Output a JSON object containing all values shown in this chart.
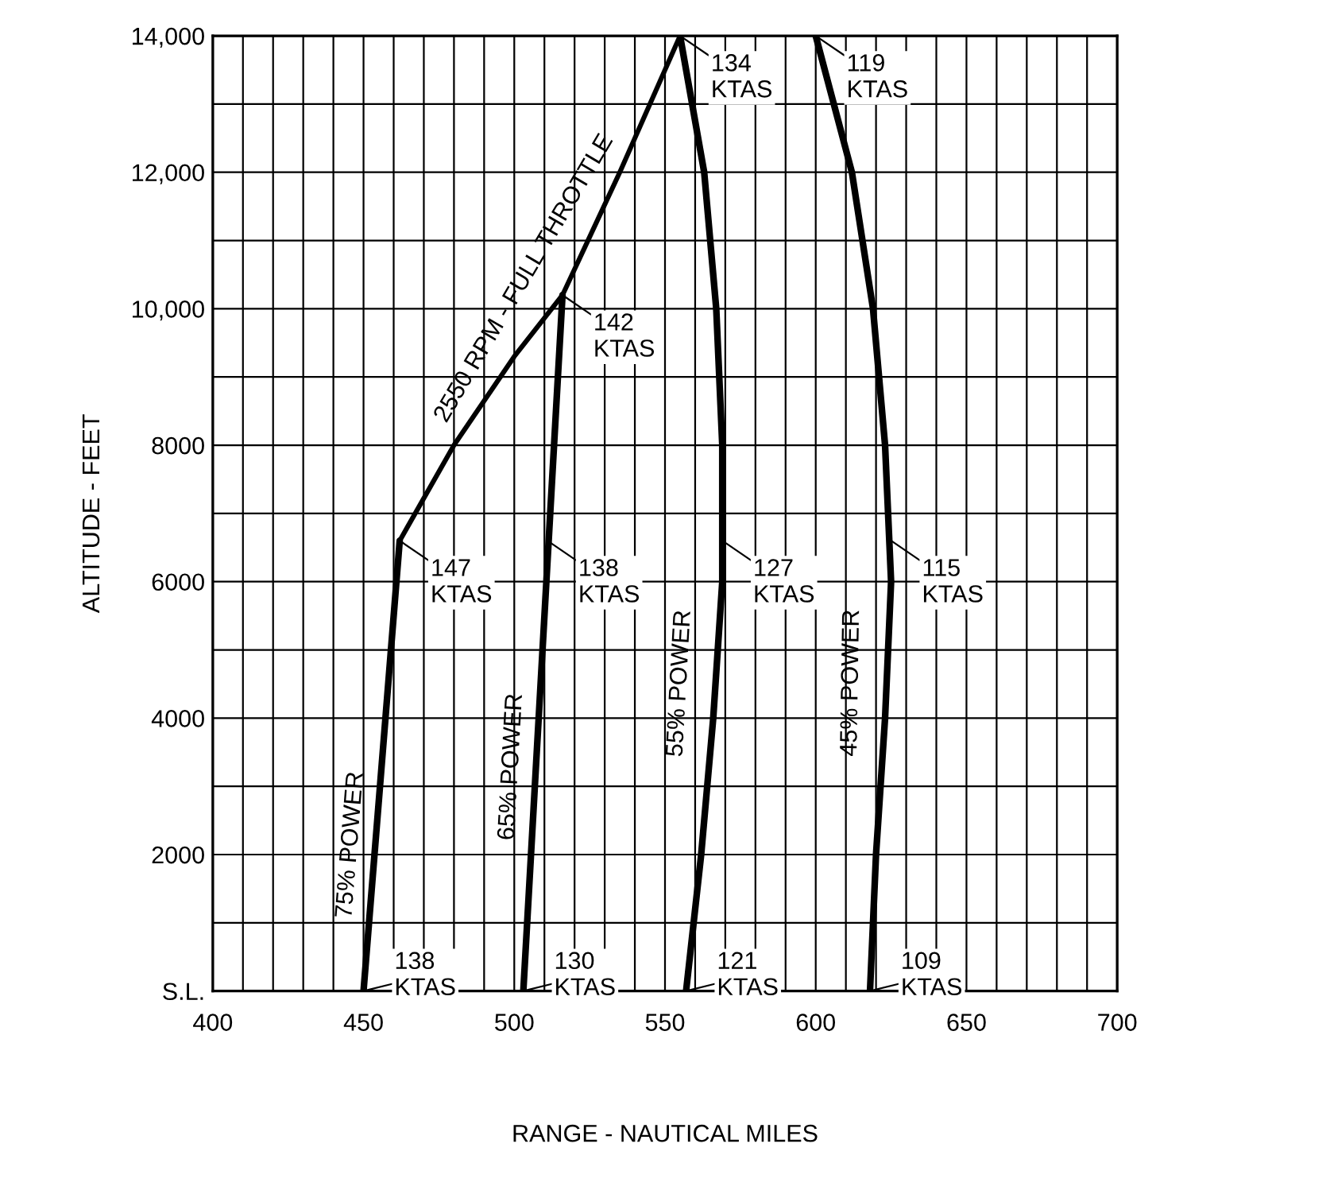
{
  "chart_data": {
    "type": "line",
    "xlabel": "RANGE - NAUTICAL MILES",
    "ylabel": "ALTITUDE - FEET",
    "xlim": [
      400,
      700
    ],
    "ylim": [
      0,
      14000
    ],
    "xticks": [
      400,
      {
        "value": 410,
        "label": null
      },
      {
        "value": 420,
        "label": null
      },
      {
        "value": 430,
        "label": null
      },
      {
        "value": 440,
        "label": null
      },
      450,
      {
        "value": 460,
        "label": null
      },
      {
        "value": 470,
        "label": null
      },
      {
        "value": 480,
        "label": null
      },
      {
        "value": 490,
        "label": null
      },
      500,
      {
        "value": 510,
        "label": null
      },
      {
        "value": 520,
        "label": null
      },
      {
        "value": 530,
        "label": null
      },
      {
        "value": 540,
        "label": null
      },
      550,
      {
        "value": 560,
        "label": null
      },
      {
        "value": 570,
        "label": null
      },
      {
        "value": 580,
        "label": null
      },
      {
        "value": 590,
        "label": null
      },
      600,
      {
        "value": 610,
        "label": null
      },
      {
        "value": 620,
        "label": null
      },
      {
        "value": 630,
        "label": null
      },
      {
        "value": 640,
        "label": null
      },
      650,
      {
        "value": 660,
        "label": null
      },
      {
        "value": 670,
        "label": null
      },
      {
        "value": 680,
        "label": null
      },
      {
        "value": 690,
        "label": null
      },
      700
    ],
    "yticks": [
      {
        "value": 0,
        "label": "S.L."
      },
      {
        "value": 1000,
        "label": null
      },
      2000,
      {
        "value": 3000,
        "label": null
      },
      4000,
      {
        "value": 5000,
        "label": null
      },
      6000,
      {
        "value": 7000,
        "label": null
      },
      8000,
      {
        "value": 9000,
        "label": null
      },
      {
        "value": 10000,
        "label": "10,000"
      },
      {
        "value": 11000,
        "label": null
      },
      {
        "value": 12000,
        "label": "12,000"
      },
      {
        "value": 13000,
        "label": null
      },
      {
        "value": 14000,
        "label": "14,000"
      }
    ],
    "grid": true,
    "legend": false,
    "marker": "none",
    "line_style": "solid",
    "series": [
      {
        "name": "75% POWER",
        "color": "#000000",
        "x": [
          450,
          462
        ],
        "values": [
          0,
          6600
        ]
      },
      {
        "name": "2550 RPM - FULL THROTTLE",
        "color": "#000000",
        "x": [
          462,
          480,
          500,
          516,
          535,
          555
        ],
        "values": [
          6600,
          8000,
          9300,
          10200,
          12000,
          14000
        ]
      },
      {
        "name": "65% POWER",
        "color": "#000000",
        "x": [
          503,
          516
        ],
        "values": [
          0,
          10200
        ]
      },
      {
        "name": "55% POWER",
        "color": "#000000",
        "x": [
          557,
          562,
          566,
          569,
          569,
          567,
          563,
          555
        ],
        "values": [
          0,
          2000,
          4000,
          6000,
          8000,
          10000,
          12000,
          14000
        ]
      },
      {
        "name": "45% POWER",
        "color": "#000000",
        "x": [
          618,
          620,
          623,
          625,
          623,
          619,
          612,
          600
        ],
        "values": [
          0,
          2000,
          4000,
          6000,
          8000,
          10000,
          12000,
          14000
        ]
      }
    ],
    "annotations": [
      {
        "text": "138\nKTAS",
        "x": 450,
        "y": 0
      },
      {
        "text": "130\nKTAS",
        "x": 503,
        "y": 0
      },
      {
        "text": "121\nKTAS",
        "x": 557,
        "y": 0
      },
      {
        "text": "109\nKTAS",
        "x": 618,
        "y": 0
      },
      {
        "text": "147\nKTAS",
        "x": 462,
        "y": 6600
      },
      {
        "text": "138\nKTAS",
        "x": 511,
        "y": 6600
      },
      {
        "text": "127\nKTAS",
        "x": 569,
        "y": 6600
      },
      {
        "text": "115\nKTAS",
        "x": 625,
        "y": 6600
      },
      {
        "text": "142\nKTAS",
        "x": 516,
        "y": 10200
      },
      {
        "text": "134\nKTAS",
        "x": 555,
        "y": 14000
      },
      {
        "text": "119\nKTAS",
        "x": 600,
        "y": 14000
      }
    ]
  }
}
